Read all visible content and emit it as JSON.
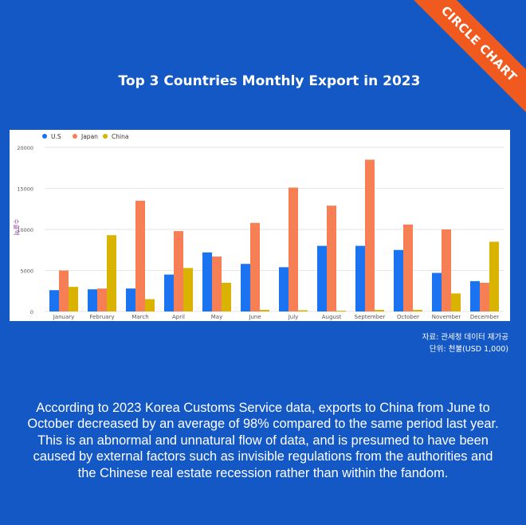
{
  "badge": "CIRCLE CHART",
  "source": {
    "line1": "자료: 관세청 데이터 재가공",
    "line2": "단위: 천불(USD 1,000)"
  },
  "caption": [
    "According to 2023 Korea Customs Service data, exports to China from June to",
    "October decreased by an average of 98% compared to the same period last year.",
    "This is an abnormal and unnatural flow of data, and is presumed to have been",
    "caused by external factors such as invisible regulations from the authorities and",
    "the Chinese real estate recession rather than within the fandom."
  ],
  "chart_data": {
    "type": "bar",
    "title": "Top 3 Countries Monthly Export in 2023",
    "xlabel": "",
    "ylabel": "수출액",
    "ylim": [
      0,
      20000
    ],
    "yticks": [
      0,
      5000,
      10000,
      15000,
      20000
    ],
    "grid": true,
    "legend": "top-left",
    "categories": [
      "January",
      "February",
      "March",
      "April",
      "May",
      "June",
      "July",
      "August",
      "September",
      "October",
      "November",
      "December"
    ],
    "series": [
      {
        "name": "U.S",
        "color": "#1a73f0",
        "values": [
          2600,
          2700,
          2800,
          4500,
          7200,
          5800,
          5400,
          8000,
          8000,
          7500,
          4700,
          3700
        ]
      },
      {
        "name": "Japan",
        "color": "#f77f56",
        "values": [
          5000,
          2800,
          13500,
          9800,
          6700,
          10800,
          15100,
          12900,
          18500,
          10600,
          10000,
          3500
        ]
      },
      {
        "name": "China",
        "color": "#d9b300",
        "values": [
          3000,
          9300,
          1500,
          5300,
          3500,
          200,
          150,
          100,
          200,
          200,
          2200,
          8500
        ]
      }
    ]
  }
}
